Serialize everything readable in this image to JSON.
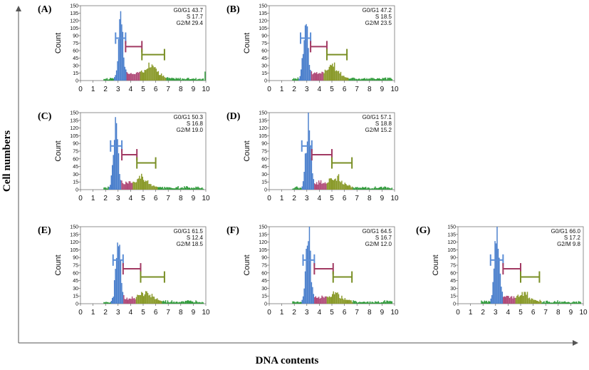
{
  "figure": {
    "y_axis_title": "Cell numbers",
    "x_axis_title": "DNA contents"
  },
  "chart_data": [
    {
      "panel": "(A)",
      "type": "area",
      "ylabel": "Count",
      "xlim": [
        0,
        10
      ],
      "ylim": [
        0,
        150
      ],
      "xticks": [
        "0",
        "1",
        "2",
        "3",
        "4",
        "5",
        "6",
        "7",
        "8",
        "9",
        "10"
      ],
      "yticks": [
        "150",
        "135",
        "120",
        "105",
        "90",
        "75",
        "60",
        "45",
        "30",
        "15",
        "0"
      ],
      "stats": [
        "G0/G1 43.7",
        "S 17.7",
        "G2/M 29.4"
      ],
      "g1": 43.7,
      "s": 17.7,
      "g2m": 29.4,
      "peak_x": 3.2,
      "gates": {
        "g1": [
          2.8,
          3.6
        ],
        "s": [
          3.6,
          4.9
        ],
        "g2m": [
          4.9,
          6.7
        ]
      }
    },
    {
      "panel": "(B)",
      "type": "area",
      "ylabel": "Count",
      "xlim": [
        0,
        10
      ],
      "ylim": [
        0,
        150
      ],
      "xticks": [
        "0",
        "1",
        "2",
        "3",
        "4",
        "5",
        "6",
        "7",
        "8",
        "9",
        "10"
      ],
      "yticks": [
        "150",
        "135",
        "120",
        "105",
        "90",
        "75",
        "60",
        "45",
        "30",
        "15",
        "0"
      ],
      "stats": [
        "G0/G1 47.2",
        "S 18.5",
        "G2/M 23.5"
      ],
      "g1": 47.2,
      "s": 18.5,
      "g2m": 23.5,
      "peak_x": 2.9,
      "gates": {
        "g1": [
          2.5,
          3.3
        ],
        "s": [
          3.3,
          4.6
        ],
        "g2m": [
          4.6,
          6.2
        ]
      }
    },
    {
      "panel": "(C)",
      "type": "area",
      "ylabel": "Count",
      "xlim": [
        0,
        10
      ],
      "ylim": [
        0,
        150
      ],
      "xticks": [
        "0",
        "1",
        "2",
        "3",
        "4",
        "5",
        "6",
        "7",
        "8",
        "9",
        "10"
      ],
      "yticks": [
        "150",
        "135",
        "120",
        "105",
        "90",
        "75",
        "60",
        "45",
        "30",
        "15",
        "0"
      ],
      "stats": [
        "G0/G1 50.3",
        "S 16.8",
        "G2/M 19.0"
      ],
      "g1": 50.3,
      "s": 16.8,
      "g2m": 19.0,
      "peak_x": 2.8,
      "gates": {
        "g1": [
          2.4,
          3.3
        ],
        "s": [
          3.3,
          4.5
        ],
        "g2m": [
          4.5,
          6.0
        ]
      }
    },
    {
      "panel": "(D)",
      "type": "area",
      "ylabel": "Count",
      "xlim": [
        0,
        10
      ],
      "ylim": [
        0,
        150
      ],
      "xticks": [
        "0",
        "1",
        "2",
        "3",
        "4",
        "5",
        "6",
        "7",
        "8",
        "9",
        "10"
      ],
      "yticks": [
        "150",
        "135",
        "120",
        "105",
        "90",
        "75",
        "60",
        "45",
        "30",
        "15",
        "0"
      ],
      "stats": [
        "G0/G1 57.1",
        "S 18.8",
        "G2/M 15.2"
      ],
      "g1": 57.1,
      "s": 18.8,
      "g2m": 15.2,
      "peak_x": 3.1,
      "gates": {
        "g1": [
          2.6,
          3.4
        ],
        "s": [
          3.4,
          5.0
        ],
        "g2m": [
          5.0,
          6.6
        ]
      }
    },
    {
      "panel": "(E)",
      "type": "area",
      "ylabel": "Count",
      "xlim": [
        0,
        10
      ],
      "ylim": [
        0,
        150
      ],
      "xticks": [
        "0",
        "1",
        "2",
        "3",
        "4",
        "5",
        "6",
        "7",
        "8",
        "9",
        "10"
      ],
      "yticks": [
        "150",
        "135",
        "120",
        "105",
        "90",
        "75",
        "60",
        "45",
        "30",
        "15",
        "0"
      ],
      "stats": [
        "G0/G1 61.5",
        "S 12.4",
        "G2/M 18.5"
      ],
      "g1": 61.5,
      "s": 12.4,
      "g2m": 18.5,
      "peak_x": 3.0,
      "gates": {
        "g1": [
          2.6,
          3.4
        ],
        "s": [
          3.4,
          4.8
        ],
        "g2m": [
          4.8,
          6.7
        ]
      }
    },
    {
      "panel": "(F)",
      "type": "area",
      "ylabel": "Count",
      "xlim": [
        0,
        10
      ],
      "ylim": [
        0,
        150
      ],
      "xticks": [
        "0",
        "1",
        "2",
        "3",
        "4",
        "5",
        "6",
        "7",
        "8",
        "9",
        "10"
      ],
      "yticks": [
        "150",
        "135",
        "120",
        "105",
        "90",
        "75",
        "60",
        "45",
        "30",
        "15",
        "0"
      ],
      "stats": [
        "G0/G1 64.5",
        "S 16.7",
        "G2/M 12.0"
      ],
      "g1": 64.5,
      "s": 16.7,
      "g2m": 12.0,
      "peak_x": 3.1,
      "gates": {
        "g1": [
          2.7,
          3.6
        ],
        "s": [
          3.6,
          5.1
        ],
        "g2m": [
          5.1,
          6.6
        ]
      }
    },
    {
      "panel": "(G)",
      "type": "area",
      "ylabel": "Count",
      "xlim": [
        0,
        10
      ],
      "ylim": [
        0,
        150
      ],
      "xticks": [
        "0",
        "1",
        "2",
        "3",
        "4",
        "5",
        "6",
        "7",
        "8",
        "9",
        "10"
      ],
      "yticks": [
        "150",
        "135",
        "120",
        "105",
        "90",
        "75",
        "60",
        "45",
        "30",
        "15",
        "0"
      ],
      "stats": [
        "G0/G1 66.0",
        "S 17.2",
        "G2/M 9.8"
      ],
      "g1": 66.0,
      "s": 17.2,
      "g2m": 9.8,
      "peak_x": 3.1,
      "gates": {
        "g1": [
          2.6,
          3.6
        ],
        "s": [
          3.6,
          5.0
        ],
        "g2m": [
          5.0,
          6.5
        ]
      }
    }
  ],
  "colors": {
    "g1": "#4a7fcc",
    "s": "#b04a78",
    "g2m": "#8a9a2a",
    "debris": "#2f9a3a",
    "gate_g1": "#5b8ed6",
    "gate_s": "#a23a63",
    "gate_g2m": "#7a8f26"
  }
}
